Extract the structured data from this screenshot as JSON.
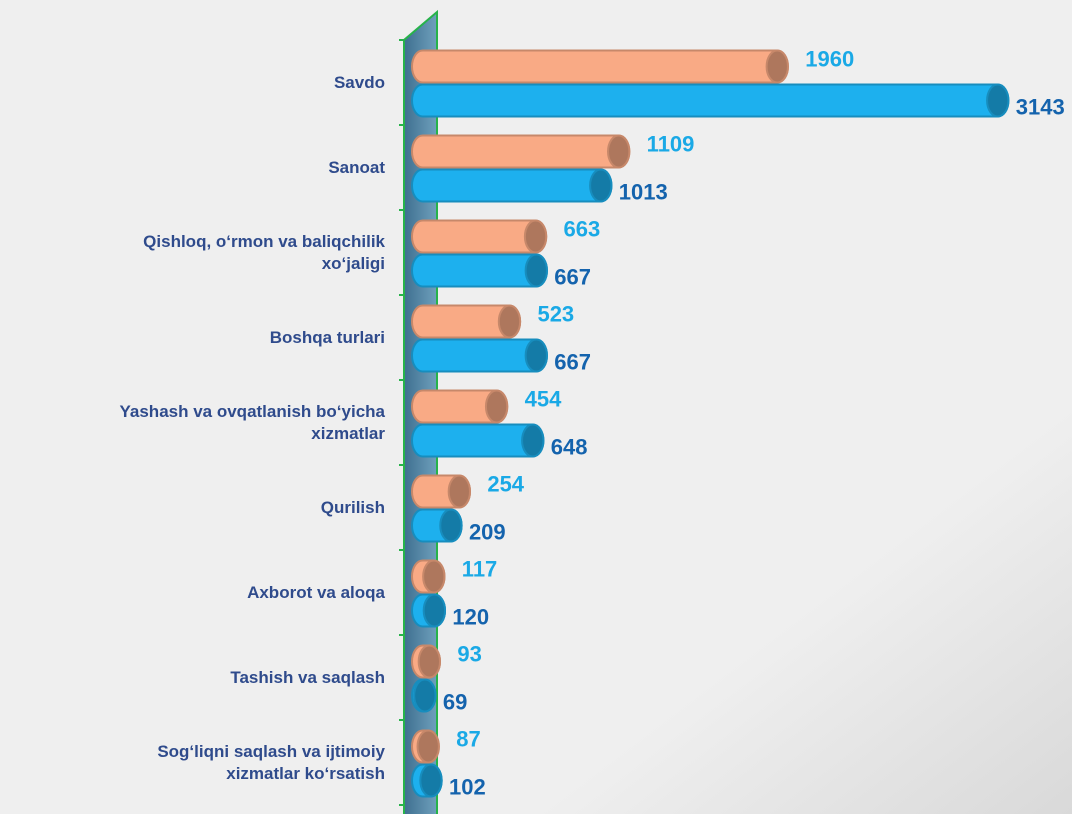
{
  "chart_data": {
    "type": "bar",
    "orientation": "horizontal",
    "categories": [
      "Savdo",
      "Sanoat",
      "Qishloq, o‘rmon va baliqchilik\nxo‘jaligi",
      "Boshqa turlari",
      "Yashash va ovqatlanish bo‘yicha\nxizmatlar",
      "Qurilish",
      "Axborot va aloqa",
      "Tashish va saqlash",
      "Sog‘liqni saqlash va ijtimoiy\nxizmatlar ko‘rsatish"
    ],
    "series": [
      {
        "color": "#f9aa85",
        "label_color": "#1aa9e6",
        "values": [
          1960,
          1109,
          663,
          523,
          454,
          254,
          117,
          93,
          87
        ]
      },
      {
        "color": "#1db0ee",
        "label_color": "#1463ad",
        "values": [
          3143,
          1013,
          667,
          667,
          648,
          209,
          120,
          69,
          102
        ]
      }
    ],
    "xlim": [
      0,
      3300
    ]
  }
}
